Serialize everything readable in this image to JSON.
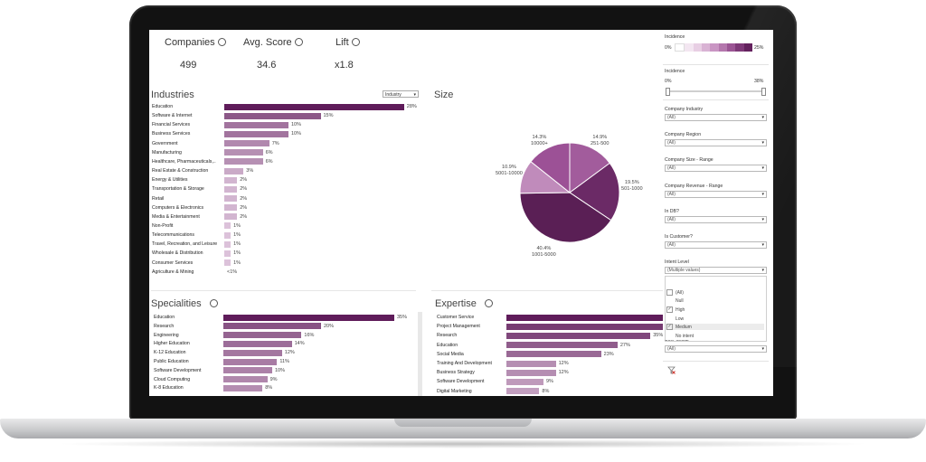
{
  "kpis": [
    {
      "label": "Companies",
      "value": "499"
    },
    {
      "label": "Avg. Score",
      "value": "34.6"
    },
    {
      "label": "Lift",
      "value": "x1.8"
    }
  ],
  "industries": {
    "title": "Industries",
    "dropdown": "Industry",
    "items": [
      {
        "label": "Education",
        "value": 28,
        "text": "28%"
      },
      {
        "label": "Software & Internet",
        "value": 15,
        "text": "15%"
      },
      {
        "label": "Financial Services",
        "value": 10,
        "text": "10%"
      },
      {
        "label": "Business Services",
        "value": 10,
        "text": "10%"
      },
      {
        "label": "Government",
        "value": 7,
        "text": "7%"
      },
      {
        "label": "Manufacturing",
        "value": 6,
        "text": "6%"
      },
      {
        "label": "Healthcare, Pharmaceuticals,..",
        "value": 6,
        "text": "6%"
      },
      {
        "label": "Real Estate & Construction",
        "value": 3,
        "text": "3%"
      },
      {
        "label": "Energy & Utilities",
        "value": 2,
        "text": "2%"
      },
      {
        "label": "Transportation & Storage",
        "value": 2,
        "text": "2%"
      },
      {
        "label": "Retail",
        "value": 2,
        "text": "2%"
      },
      {
        "label": "Computers & Electronics",
        "value": 2,
        "text": "2%"
      },
      {
        "label": "Media & Entertainment",
        "value": 2,
        "text": "2%"
      },
      {
        "label": "Non-Profit",
        "value": 1,
        "text": "1%"
      },
      {
        "label": "Telecommunications",
        "value": 1,
        "text": "1%"
      },
      {
        "label": "Travel, Recreation, and Leisure",
        "value": 1,
        "text": "1%"
      },
      {
        "label": "Wholesale & Distribution",
        "value": 1,
        "text": "1%"
      },
      {
        "label": "Consumer Services",
        "value": 1,
        "text": "1%"
      },
      {
        "label": "Agriculture & Mining",
        "value": 0,
        "text": "<1%"
      }
    ]
  },
  "size": {
    "title": "Size",
    "slices": [
      {
        "range": "251-500",
        "pct": "14.9%",
        "value": 14.9,
        "color": "#a25c9c"
      },
      {
        "range": "501-1000",
        "pct": "19.5%",
        "value": 19.5,
        "color": "#6b2a66"
      },
      {
        "range": "1001-5000",
        "pct": "40.4%",
        "value": 40.4,
        "color": "#5a1f55"
      },
      {
        "range": "5001-10000",
        "pct": "10.9%",
        "value": 10.9,
        "color": "#c08bbb"
      },
      {
        "range": "10000+",
        "pct": "14.3%",
        "value": 14.3,
        "color": "#9c5196"
      }
    ]
  },
  "specialities": {
    "title": "Specialities",
    "items": [
      {
        "label": "Education",
        "value": 35,
        "text": "35%"
      },
      {
        "label": "Research",
        "value": 20,
        "text": "20%"
      },
      {
        "label": "Engineering",
        "value": 16,
        "text": "16%"
      },
      {
        "label": "Higher Education",
        "value": 14,
        "text": "14%"
      },
      {
        "label": "K-12 Education",
        "value": 12,
        "text": "12%"
      },
      {
        "label": "Public Education",
        "value": 11,
        "text": "11%"
      },
      {
        "label": "Software Development",
        "value": 10,
        "text": "10%"
      },
      {
        "label": "Cloud Computing",
        "value": 9,
        "text": "9%"
      },
      {
        "label": "K-8 Education",
        "value": 8,
        "text": "8%"
      }
    ]
  },
  "expertise": {
    "title": "Expertise",
    "items": [
      {
        "label": "Customer Service",
        "value": 54,
        "text": ""
      },
      {
        "label": "Project Management",
        "value": 40,
        "text": "40%"
      },
      {
        "label": "Research",
        "value": 35,
        "text": "35%"
      },
      {
        "label": "Education",
        "value": 27,
        "text": "27%"
      },
      {
        "label": "Social Media",
        "value": 23,
        "text": "23%"
      },
      {
        "label": "Training And Development",
        "value": 12,
        "text": "12%"
      },
      {
        "label": "Business Strategy",
        "value": 12,
        "text": "12%"
      },
      {
        "label": "Software Development",
        "value": 9,
        "text": "9%"
      },
      {
        "label": "Digital Marketing",
        "value": 8,
        "text": "8%"
      }
    ]
  },
  "filters": {
    "incidence_legend": {
      "label": "Incidence",
      "min": "0%",
      "max": "25%"
    },
    "incidence_slider": {
      "label": "Incidence",
      "min": "0%",
      "max": "38%"
    },
    "selects": [
      {
        "label": "Company Industry",
        "value": "(All)"
      },
      {
        "label": "Company Region",
        "value": "(All)"
      },
      {
        "label": "Company Size - Range",
        "value": "(All)"
      },
      {
        "label": "Company Revenue - Range",
        "value": "(All)"
      },
      {
        "label": "In DB?",
        "value": "(All)"
      },
      {
        "label": "Is Customer?",
        "value": "(All)"
      }
    ],
    "intent": {
      "label": "Intent Level",
      "value": "(Multiple values)",
      "options": [
        {
          "label": "(All)",
          "checked": false
        },
        {
          "label": "Null",
          "checked": false
        },
        {
          "label": "High",
          "checked": true
        },
        {
          "label": "Low",
          "checked": false
        },
        {
          "label": "Medium",
          "checked": true
        },
        {
          "label": "No intent",
          "checked": false
        }
      ]
    },
    "user_social": {
      "label": "User Social",
      "value": "(All)"
    }
  }
}
